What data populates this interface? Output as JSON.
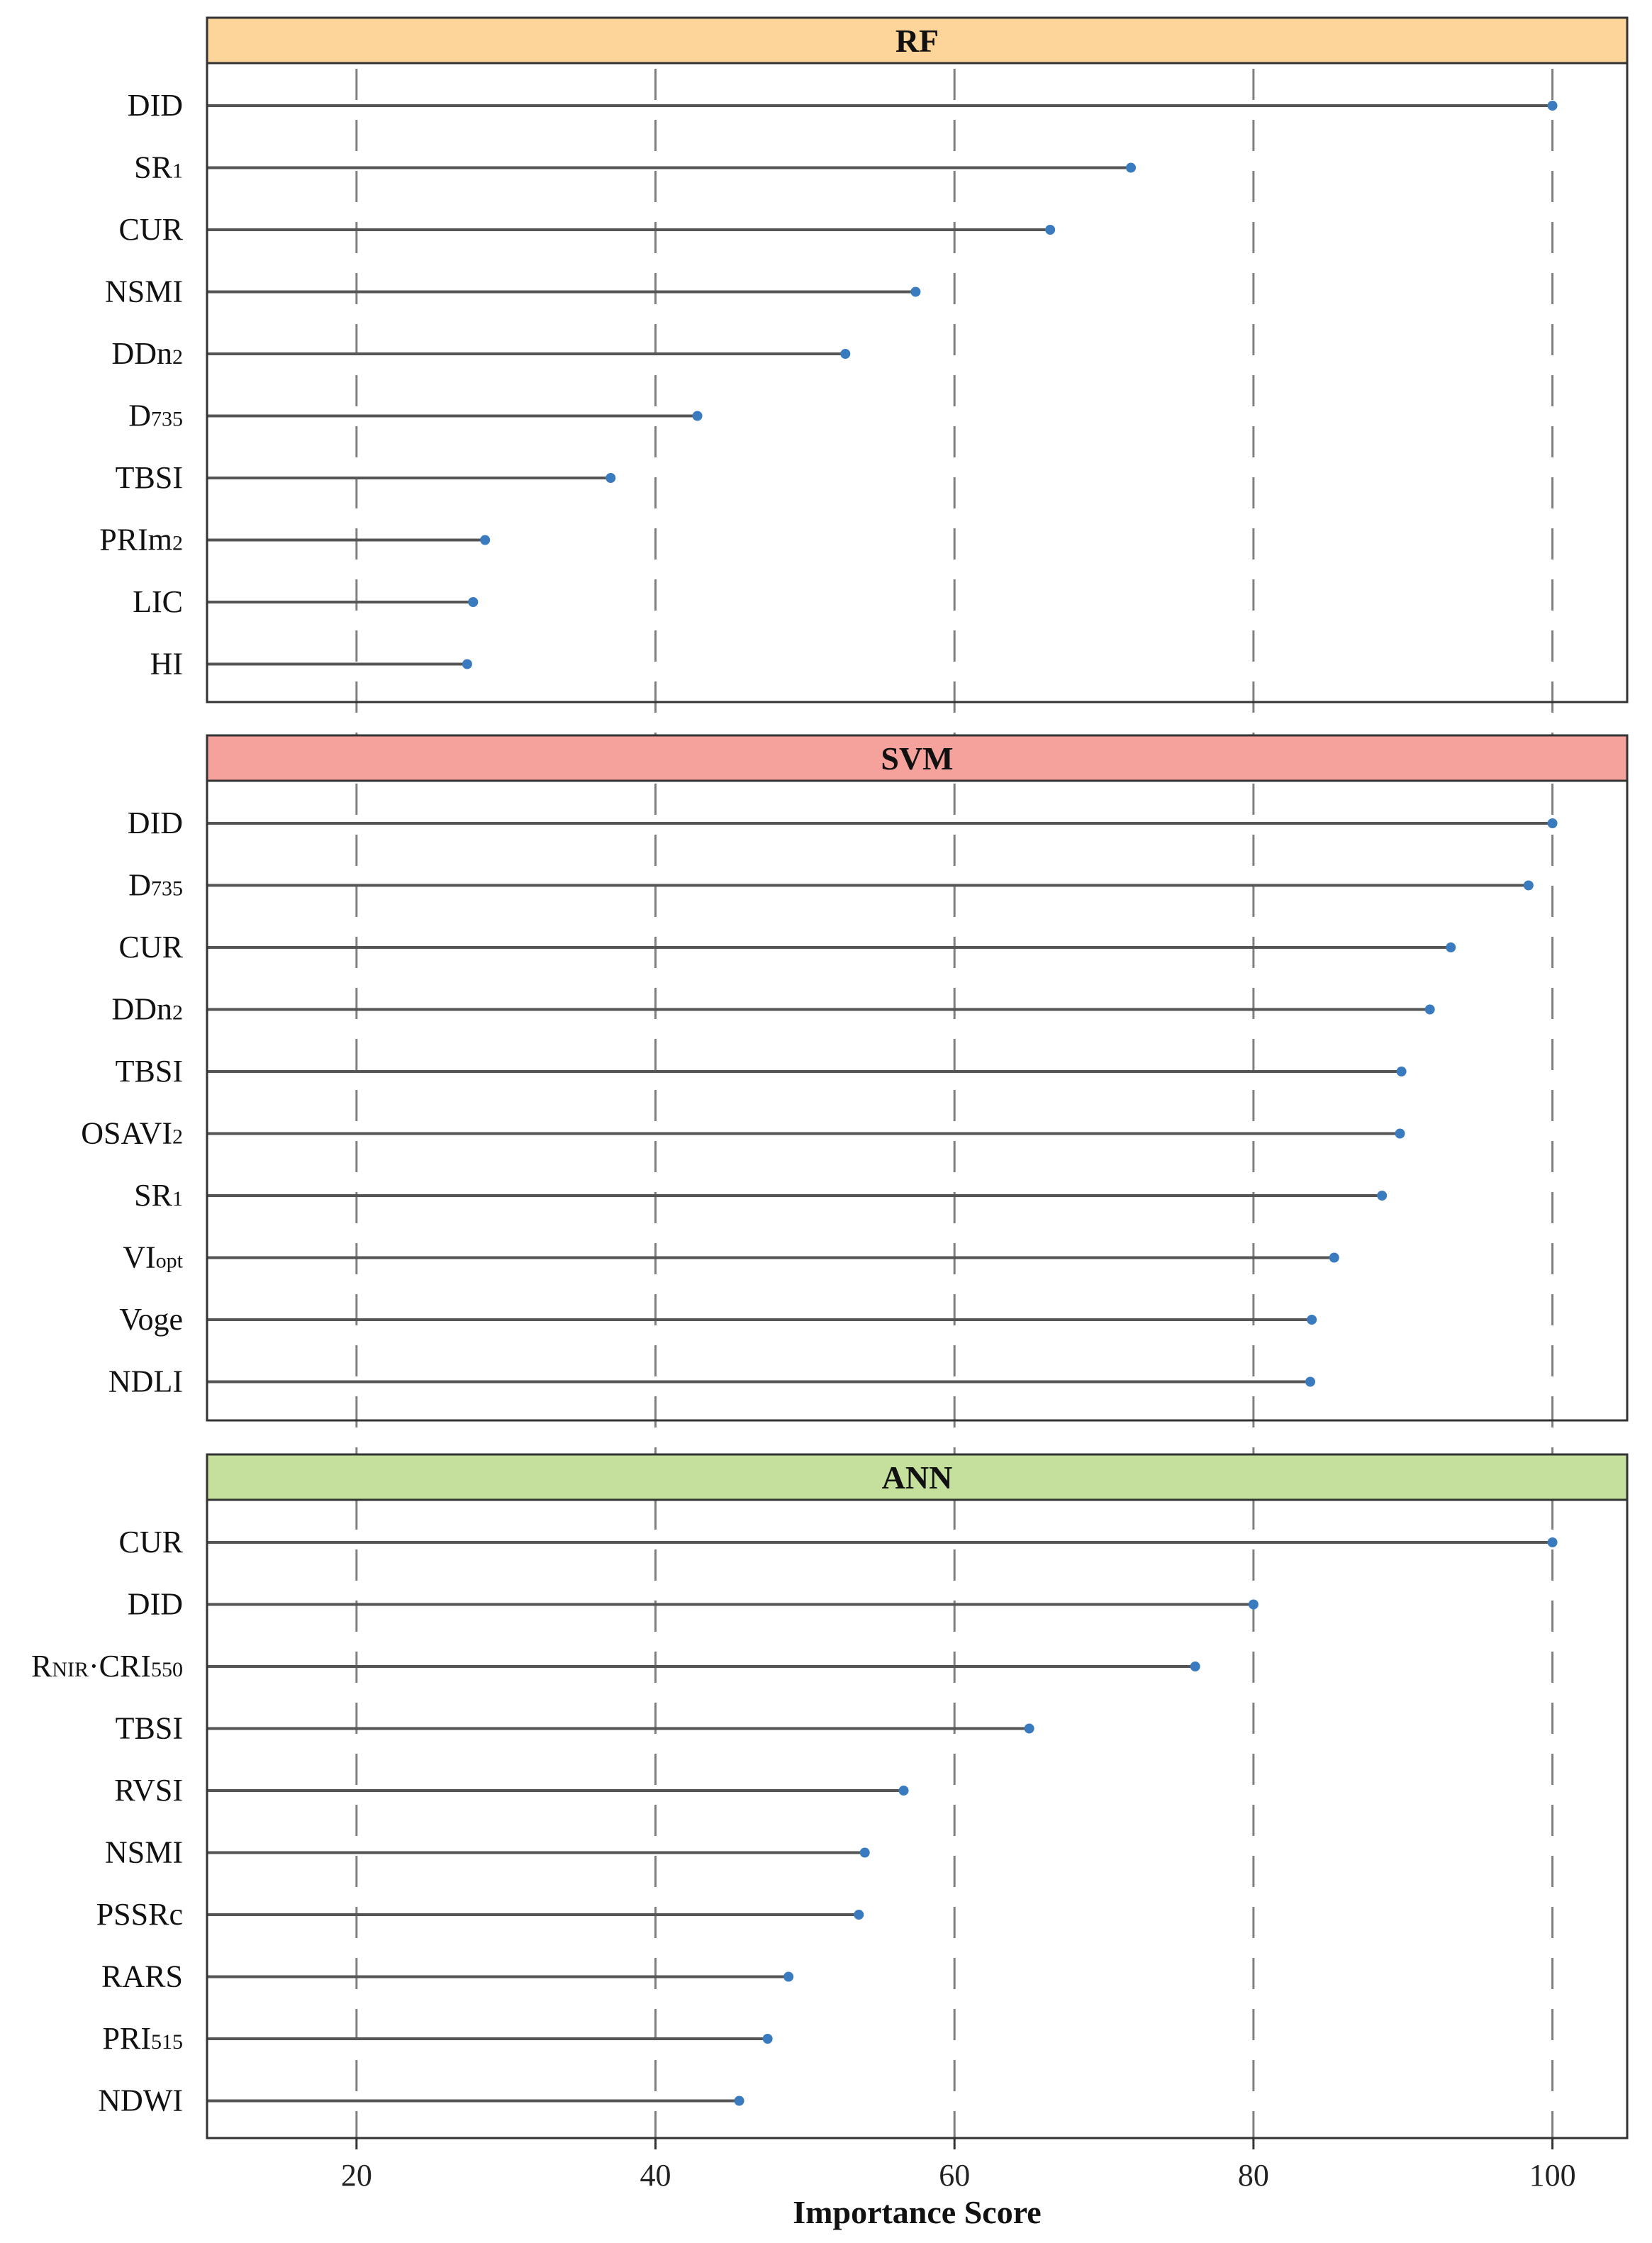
{
  "chart_data": {
    "type": "lollipop",
    "xlabel": "Importance Score",
    "xlim": [
      10,
      105
    ],
    "xticks": [
      20,
      40,
      60,
      80,
      100
    ],
    "grid": "vertical dashed at major ticks",
    "colors": {
      "point": "#3a7bbf",
      "stem": "#555555",
      "gridline": "#808080"
    },
    "panels": [
      {
        "title": "RF",
        "strip_color": "#fdd49a",
        "items": [
          {
            "name": "DID",
            "label": [
              {
                "t": "DID"
              }
            ],
            "value": 100
          },
          {
            "name": "SR1",
            "label": [
              {
                "t": "SR"
              },
              {
                "t": "1",
                "sub": true
              }
            ],
            "value": 71.8
          },
          {
            "name": "CUR",
            "label": [
              {
                "t": "CUR"
              }
            ],
            "value": 66.4
          },
          {
            "name": "NSMI",
            "label": [
              {
                "t": "NSMI"
              }
            ],
            "value": 57.4
          },
          {
            "name": "DDn2",
            "label": [
              {
                "t": "DDn"
              },
              {
                "t": "2",
                "sub": true
              }
            ],
            "value": 52.7
          },
          {
            "name": "D735",
            "label": [
              {
                "t": "D"
              },
              {
                "t": "735",
                "sub": true
              }
            ],
            "value": 42.8
          },
          {
            "name": "TBSI",
            "label": [
              {
                "t": "TBSI"
              }
            ],
            "value": 37.0
          },
          {
            "name": "PRIm2",
            "label": [
              {
                "t": "PRIm"
              },
              {
                "t": "2",
                "sub": true
              }
            ],
            "value": 28.6
          },
          {
            "name": "LIC",
            "label": [
              {
                "t": "LIC"
              }
            ],
            "value": 27.8
          },
          {
            "name": "HI",
            "label": [
              {
                "t": "HI"
              }
            ],
            "value": 27.4
          }
        ]
      },
      {
        "title": "SVM",
        "strip_color": "#f5a19c",
        "items": [
          {
            "name": "DID",
            "label": [
              {
                "t": "DID"
              }
            ],
            "value": 100
          },
          {
            "name": "D735",
            "label": [
              {
                "t": "D"
              },
              {
                "t": "735",
                "sub": true
              }
            ],
            "value": 98.4
          },
          {
            "name": "CUR",
            "label": [
              {
                "t": "CUR"
              }
            ],
            "value": 93.2
          },
          {
            "name": "DDn2",
            "label": [
              {
                "t": "DDn"
              },
              {
                "t": "2",
                "sub": true
              }
            ],
            "value": 91.8
          },
          {
            "name": "TBSI",
            "label": [
              {
                "t": "TBSI"
              }
            ],
            "value": 89.9
          },
          {
            "name": "OSAVI2",
            "label": [
              {
                "t": "OSAVI"
              },
              {
                "t": "2",
                "sub": true
              }
            ],
            "value": 89.8
          },
          {
            "name": "SR1",
            "label": [
              {
                "t": "SR"
              },
              {
                "t": "1",
                "sub": true
              }
            ],
            "value": 88.6
          },
          {
            "name": "VIopt",
            "label": [
              {
                "t": "VI"
              },
              {
                "t": "opt",
                "sub": true
              }
            ],
            "value": 85.4
          },
          {
            "name": "Voge",
            "label": [
              {
                "t": "Voge"
              }
            ],
            "value": 83.9
          },
          {
            "name": "NDLI",
            "label": [
              {
                "t": "NDLI"
              }
            ],
            "value": 83.8
          }
        ]
      },
      {
        "title": "ANN",
        "strip_color": "#c5e09c",
        "items": [
          {
            "name": "CUR",
            "label": [
              {
                "t": "CUR"
              }
            ],
            "value": 100
          },
          {
            "name": "DID",
            "label": [
              {
                "t": "DID"
              }
            ],
            "value": 80.0
          },
          {
            "name": "RNIR-CRI550",
            "label": [
              {
                "t": "R"
              },
              {
                "t": "NIR",
                "sub": true
              },
              {
                "t": "·CRI"
              },
              {
                "t": "550",
                "sub": true
              }
            ],
            "value": 76.1
          },
          {
            "name": "TBSI",
            "label": [
              {
                "t": "TBSI"
              }
            ],
            "value": 65.0
          },
          {
            "name": "RVSI",
            "label": [
              {
                "t": "RVSI"
              }
            ],
            "value": 56.6
          },
          {
            "name": "NSMI",
            "label": [
              {
                "t": "NSMI"
              }
            ],
            "value": 54.0
          },
          {
            "name": "PSSRc",
            "label": [
              {
                "t": "PSSRc"
              }
            ],
            "value": 53.6
          },
          {
            "name": "RARS",
            "label": [
              {
                "t": "RARS"
              }
            ],
            "value": 48.9
          },
          {
            "name": "PRI515",
            "label": [
              {
                "t": "PRI"
              },
              {
                "t": "515",
                "sub": true
              }
            ],
            "value": 47.5
          },
          {
            "name": "NDWI",
            "label": [
              {
                "t": "NDWI"
              }
            ],
            "value": 45.6
          }
        ]
      }
    ]
  }
}
